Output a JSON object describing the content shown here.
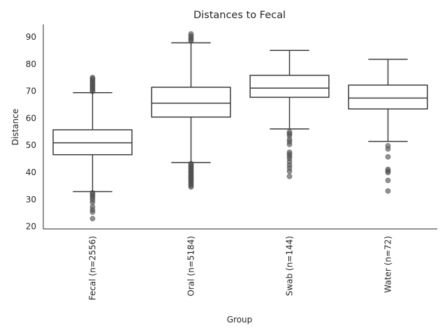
{
  "chart_data": {
    "type": "boxplot",
    "title": "Distances to Fecal",
    "xlabel": "Group",
    "ylabel": "Distance",
    "ylim": [
      19,
      94.5
    ],
    "yticks": [
      20,
      30,
      40,
      50,
      60,
      70,
      80,
      90
    ],
    "grid": false,
    "legend": "none",
    "box_color": "#3a3a3a",
    "outlier_color": "#555555",
    "categories": [
      "Fecal (n=2556)",
      "Oral (n=5184)",
      "Swab (n=144)",
      "Water (n=72)"
    ],
    "boxes": [
      {
        "whisker_low": 32.8,
        "q1": 46.4,
        "median": 50.8,
        "q3": 55.6,
        "whisker_high": 69.3,
        "outliers": [
          22.8,
          25.2,
          26.1,
          27.2,
          28.8,
          29.7,
          30.5,
          31.2,
          31.8,
          32.3,
          69.8,
          70.3,
          70.9,
          71.4,
          71.9,
          72.4,
          72.9,
          73.5,
          74.0,
          74.5,
          74.9
        ]
      },
      {
        "whisker_low": 43.5,
        "q1": 60.3,
        "median": 65.4,
        "q3": 71.3,
        "whisker_high": 87.7,
        "outliers": [
          34.5,
          35.0,
          35.6,
          36.1,
          36.6,
          37.1,
          37.6,
          38.1,
          38.6,
          39.1,
          39.6,
          40.1,
          40.6,
          41.1,
          41.6,
          42.1,
          42.6,
          43.1,
          88.4,
          89.0,
          89.6,
          90.3,
          91.0
        ]
      },
      {
        "whisker_low": 55.9,
        "q1": 67.6,
        "median": 71.0,
        "q3": 75.7,
        "whisker_high": 84.9,
        "outliers": [
          38.4,
          40.3,
          41.5,
          42.6,
          43.8,
          45.0,
          45.8,
          46.6,
          47.3,
          50.2,
          51.2,
          52.0,
          53.4,
          54.1,
          54.8
        ]
      },
      {
        "whisker_low": 51.3,
        "q1": 63.3,
        "median": 67.3,
        "q3": 72.1,
        "whisker_high": 81.6,
        "outliers": [
          33.0,
          36.9,
          39.8,
          40.4,
          41.0,
          45.6,
          48.5,
          49.7
        ]
      }
    ]
  }
}
